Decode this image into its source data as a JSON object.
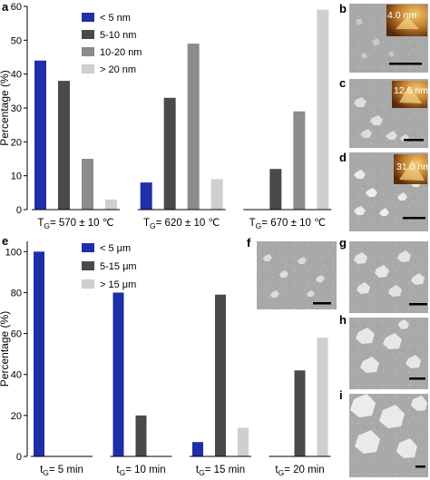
{
  "chart_data": [
    {
      "panel": "a",
      "type": "bar",
      "ylabel": "Percentage (%)",
      "ylim": [
        0,
        60
      ],
      "yticks": [
        "0",
        "10",
        "20",
        "30",
        "40",
        "50",
        "60"
      ],
      "categories": [
        "T_G= 570 ± 10 ℃",
        "T_G= 620 ± 10 ℃",
        "T_G= 670 ± 10 ℃"
      ],
      "series": [
        {
          "name": "< 5 nm",
          "color": "#1f2fa8",
          "values": [
            44,
            8,
            0
          ]
        },
        {
          "name": "5-10 nm",
          "color": "#4a4a4a",
          "values": [
            38,
            33,
            12
          ]
        },
        {
          "name": "10-20 nm",
          "color": "#8c8c8c",
          "values": [
            15,
            49,
            29
          ]
        },
        {
          "name": "> 20 nm",
          "color": "#cfcfcf",
          "values": [
            3,
            9,
            59
          ]
        }
      ],
      "legend": "top-left"
    },
    {
      "panel": "e",
      "type": "bar",
      "ylabel": "Percentage (%)",
      "ylim": [
        0,
        105
      ],
      "yticks": [
        "0",
        "20",
        "40",
        "60",
        "80",
        "100"
      ],
      "categories": [
        "t_G= 5 min",
        "t_G= 10 min",
        "t_G= 15 min",
        "t_G= 20 min"
      ],
      "series": [
        {
          "name": "< 5 μm",
          "color": "#1f2fa8",
          "values": [
            100,
            80,
            7,
            0
          ]
        },
        {
          "name": "5-15 μm",
          "color": "#4a4a4a",
          "values": [
            0,
            20,
            79,
            42
          ]
        },
        {
          "name": "> 15 μm",
          "color": "#cfcfcf",
          "values": [
            0,
            0,
            14,
            58
          ]
        }
      ],
      "legend": "top-left"
    }
  ],
  "panel_labels": {
    "a": "a",
    "b": "b",
    "c": "c",
    "d": "d",
    "e": "e",
    "f": "f",
    "g": "g",
    "h": "h",
    "i": "i"
  },
  "afm_labels": {
    "b": "4.0 nm",
    "c": "12.6 nm",
    "d": "31.0 nm"
  }
}
